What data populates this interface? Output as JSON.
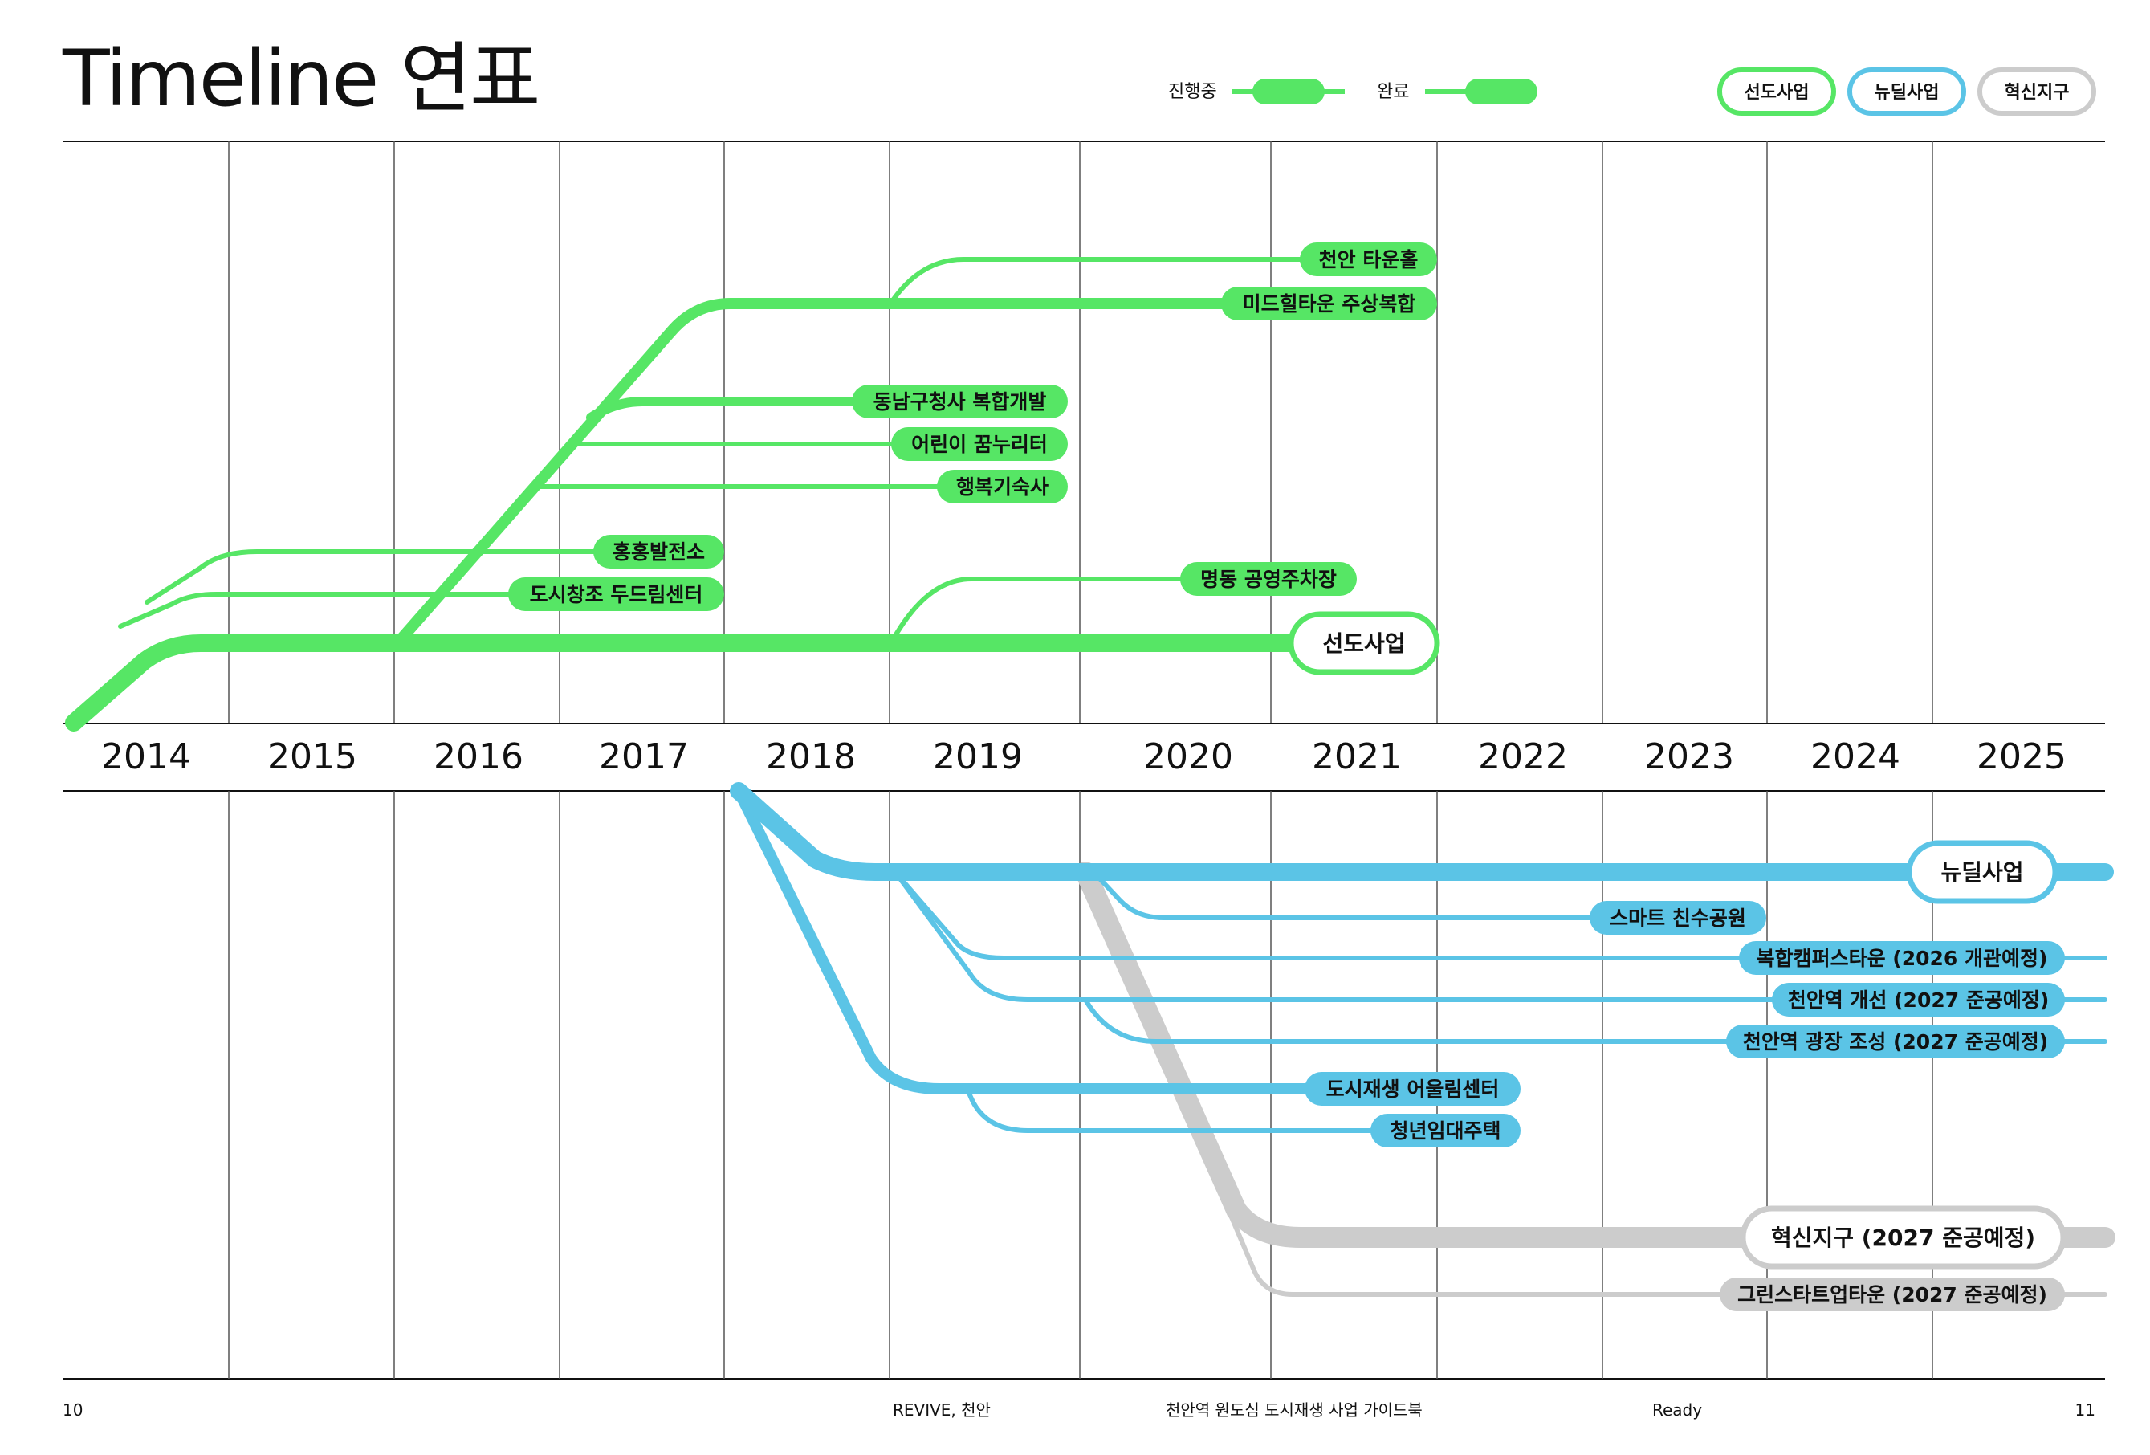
{
  "title": "Timeline 연표",
  "legend": {
    "in_progress": "진행중",
    "completed": "완료",
    "chips": [
      {
        "label": "선도사업",
        "color": "#56e665"
      },
      {
        "label": "뉴딜사업",
        "color": "#5bc4e6"
      },
      {
        "label": "혁신지구",
        "color": "#cccccc"
      }
    ]
  },
  "colors": {
    "green": "#56e665",
    "blue": "#5bc4e6",
    "gray": "#cccccc"
  },
  "years": [
    "2014",
    "2015",
    "2016",
    "2017",
    "2018",
    "2019",
    "2020",
    "2021",
    "2022",
    "2023",
    "2024",
    "2025"
  ],
  "programs": {
    "seondo": {
      "label": "선도사업",
      "projects": [
        "천안 타운홀",
        "미드힐타운 주상복합",
        "동남구청사 복합개발",
        "어린이 꿈누리터",
        "행복기숙사",
        "홍홍발전소",
        "도시창조 두드림센터",
        "명동 공영주차장"
      ]
    },
    "newdeal": {
      "label": "뉴딜사업",
      "projects": [
        "스마트 친수공원",
        "복합캠퍼스타운 (2026 개관예정)",
        "천안역 개선 (2027 준공예정)",
        "천안역 광장 조성 (2027 준공예정)",
        "도시재생 어울림센터",
        "청년임대주택"
      ]
    },
    "innovation": {
      "label": "혁신지구 (2027 준공예정)",
      "projects": [
        "그린스타트업타운 (2027 준공예정)"
      ]
    }
  },
  "footer": {
    "page_left": "10",
    "publication": "REVIVE, 천안",
    "guidebook": "천안역 원도심 도시재생 사업 가이드북",
    "section": "Ready",
    "page_right": "11"
  }
}
